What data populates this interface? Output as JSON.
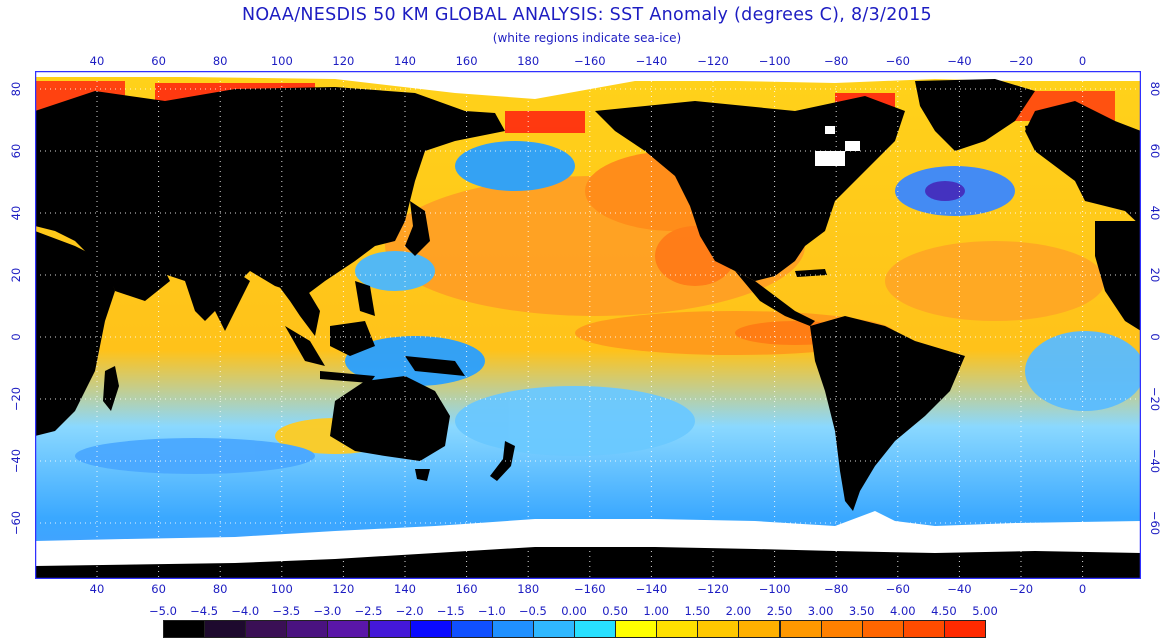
{
  "header": {
    "title": "NOAA/NESDIS 50 KM GLOBAL ANALYSIS: SST Anomaly (degrees C), 8/3/2015",
    "subtitle": "(white regions indicate sea-ice)"
  },
  "axes": {
    "lon_ticks": [
      "40",
      "60",
      "80",
      "100",
      "120",
      "140",
      "160",
      "180",
      "−160",
      "−140",
      "−120",
      "−100",
      "−80",
      "−60",
      "−40",
      "−20",
      "0"
    ],
    "lat_ticks": [
      "80",
      "60",
      "40",
      "20",
      "0",
      "−20",
      "−40",
      "−60"
    ],
    "lat_ticks_right": [
      "80",
      "60",
      "40",
      "20",
      "0",
      "−20",
      "−40",
      "−60"
    ]
  },
  "colorbar": {
    "labels": [
      "−5.0",
      "−4.5",
      "−4.0",
      "−3.5",
      "−3.0",
      "−2.5",
      "−2.0",
      "−1.5",
      "−1.0",
      "−0.5",
      "0.00",
      "0.50",
      "1.00",
      "1.50",
      "2.00",
      "2.50",
      "3.00",
      "3.50",
      "4.00",
      "4.50",
      "5.00"
    ],
    "colors": [
      "#000000",
      "#1e0a2e",
      "#3a0f55",
      "#4a1280",
      "#5a16a8",
      "#4418d8",
      "#0a0aff",
      "#1050ff",
      "#2090ff",
      "#30b8ff",
      "#28e0ff",
      "#ffff00",
      "#ffe000",
      "#ffc800",
      "#ffb000",
      "#ff9800",
      "#ff8000",
      "#ff6600",
      "#ff4c00",
      "#ff2a00"
    ]
  },
  "map": {
    "land_color": "#000000",
    "ice_color": "#ffffff",
    "grid_color": "#ffffff",
    "frame_color": "#3030ff"
  }
}
